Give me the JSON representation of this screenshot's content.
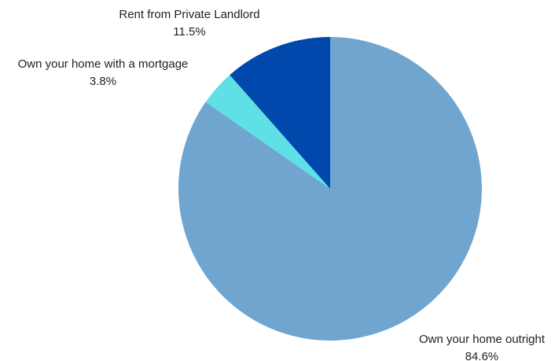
{
  "chart_data": {
    "type": "pie",
    "title": "",
    "start_angle_deg": 0,
    "direction": "clockwise",
    "legend": "none",
    "slices": [
      {
        "label": "Own your home outright",
        "value": 84.6,
        "value_label": "84.6%",
        "color": "#6fa5ce"
      },
      {
        "label": "Own your home with a mortgage",
        "value": 3.8,
        "value_label": "3.8%",
        "color": "#5ee0e6"
      },
      {
        "label": "Rent from Private Landlord",
        "value": 11.5,
        "value_label": "11.5%",
        "color": "#0048ac"
      }
    ]
  }
}
